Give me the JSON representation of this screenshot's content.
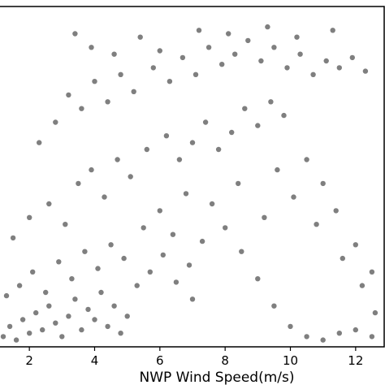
{
  "chart_data": {
    "type": "scatter",
    "xlabel": "NWP Wind Speed(m/s)",
    "ylabel": "",
    "title": "",
    "xlim": [
      1.1,
      12.9
    ],
    "ylim": [
      0,
      1
    ],
    "x_ticks": [
      2,
      4,
      6,
      8,
      10,
      12
    ],
    "x_tick_labels": [
      "2",
      "4",
      "6",
      "8",
      "10",
      "12"
    ],
    "grid": false,
    "marker_color": "#7f7f7f",
    "series": [
      {
        "points": [
          [
            1.2,
            0.03
          ],
          [
            1.4,
            0.06
          ],
          [
            1.6,
            0.02
          ],
          [
            1.8,
            0.08
          ],
          [
            2.0,
            0.04
          ],
          [
            2.2,
            0.1
          ],
          [
            2.4,
            0.05
          ],
          [
            2.6,
            0.12
          ],
          [
            2.8,
            0.07
          ],
          [
            3.0,
            0.03
          ],
          [
            3.2,
            0.09
          ],
          [
            3.4,
            0.14
          ],
          [
            3.6,
            0.05
          ],
          [
            3.8,
            0.11
          ],
          [
            4.0,
            0.08
          ],
          [
            4.2,
            0.16
          ],
          [
            4.4,
            0.06
          ],
          [
            4.6,
            0.12
          ],
          [
            4.8,
            0.04
          ],
          [
            5.0,
            0.09
          ],
          [
            1.3,
            0.15
          ],
          [
            1.7,
            0.18
          ],
          [
            2.1,
            0.22
          ],
          [
            2.5,
            0.16
          ],
          [
            2.9,
            0.25
          ],
          [
            3.3,
            0.2
          ],
          [
            3.7,
            0.28
          ],
          [
            4.1,
            0.23
          ],
          [
            4.5,
            0.3
          ],
          [
            4.9,
            0.26
          ],
          [
            5.3,
            0.18
          ],
          [
            5.7,
            0.22
          ],
          [
            6.1,
            0.27
          ],
          [
            6.5,
            0.19
          ],
          [
            6.9,
            0.24
          ],
          [
            7.3,
            0.31
          ],
          [
            5.5,
            0.35
          ],
          [
            6.0,
            0.4
          ],
          [
            6.4,
            0.33
          ],
          [
            6.8,
            0.45
          ],
          [
            1.5,
            0.32
          ],
          [
            2.0,
            0.38
          ],
          [
            2.6,
            0.42
          ],
          [
            3.1,
            0.36
          ],
          [
            3.5,
            0.48
          ],
          [
            3.9,
            0.52
          ],
          [
            4.3,
            0.44
          ],
          [
            4.7,
            0.55
          ],
          [
            5.1,
            0.5
          ],
          [
            5.6,
            0.58
          ],
          [
            6.2,
            0.62
          ],
          [
            6.6,
            0.55
          ],
          [
            7.0,
            0.6
          ],
          [
            7.4,
            0.66
          ],
          [
            7.8,
            0.58
          ],
          [
            8.2,
            0.63
          ],
          [
            8.6,
            0.7
          ],
          [
            9.0,
            0.65
          ],
          [
            9.4,
            0.72
          ],
          [
            9.8,
            0.68
          ],
          [
            2.3,
            0.6
          ],
          [
            2.8,
            0.66
          ],
          [
            3.2,
            0.74
          ],
          [
            3.6,
            0.7
          ],
          [
            4.0,
            0.78
          ],
          [
            4.4,
            0.72
          ],
          [
            4.8,
            0.8
          ],
          [
            5.2,
            0.75
          ],
          [
            5.8,
            0.82
          ],
          [
            6.3,
            0.78
          ],
          [
            6.7,
            0.85
          ],
          [
            7.1,
            0.8
          ],
          [
            7.5,
            0.88
          ],
          [
            7.9,
            0.83
          ],
          [
            8.3,
            0.86
          ],
          [
            8.7,
            0.9
          ],
          [
            9.1,
            0.84
          ],
          [
            9.5,
            0.88
          ],
          [
            9.9,
            0.82
          ],
          [
            10.3,
            0.86
          ],
          [
            10.7,
            0.8
          ],
          [
            11.1,
            0.84
          ],
          [
            11.5,
            0.82
          ],
          [
            11.9,
            0.85
          ],
          [
            12.3,
            0.81
          ],
          [
            10.5,
            0.55
          ],
          [
            11.0,
            0.48
          ],
          [
            11.4,
            0.4
          ],
          [
            12.0,
            0.3
          ],
          [
            12.5,
            0.22
          ],
          [
            8.0,
            0.35
          ],
          [
            8.5,
            0.28
          ],
          [
            9.0,
            0.2
          ],
          [
            9.5,
            0.12
          ],
          [
            10.0,
            0.06
          ],
          [
            10.5,
            0.03
          ],
          [
            11.0,
            0.02
          ],
          [
            11.5,
            0.04
          ],
          [
            12.0,
            0.05
          ],
          [
            12.5,
            0.03
          ],
          [
            3.4,
            0.92
          ],
          [
            3.9,
            0.88
          ],
          [
            4.6,
            0.86
          ],
          [
            5.4,
            0.91
          ],
          [
            6.0,
            0.87
          ],
          [
            7.2,
            0.93
          ],
          [
            8.1,
            0.92
          ],
          [
            9.3,
            0.94
          ],
          [
            10.2,
            0.91
          ],
          [
            11.3,
            0.93
          ],
          [
            7.6,
            0.42
          ],
          [
            8.4,
            0.48
          ],
          [
            9.2,
            0.38
          ],
          [
            9.6,
            0.52
          ],
          [
            10.1,
            0.44
          ],
          [
            10.8,
            0.36
          ],
          [
            11.6,
            0.26
          ],
          [
            12.2,
            0.18
          ],
          [
            12.6,
            0.1
          ],
          [
            7.0,
            0.14
          ]
        ]
      }
    ]
  }
}
